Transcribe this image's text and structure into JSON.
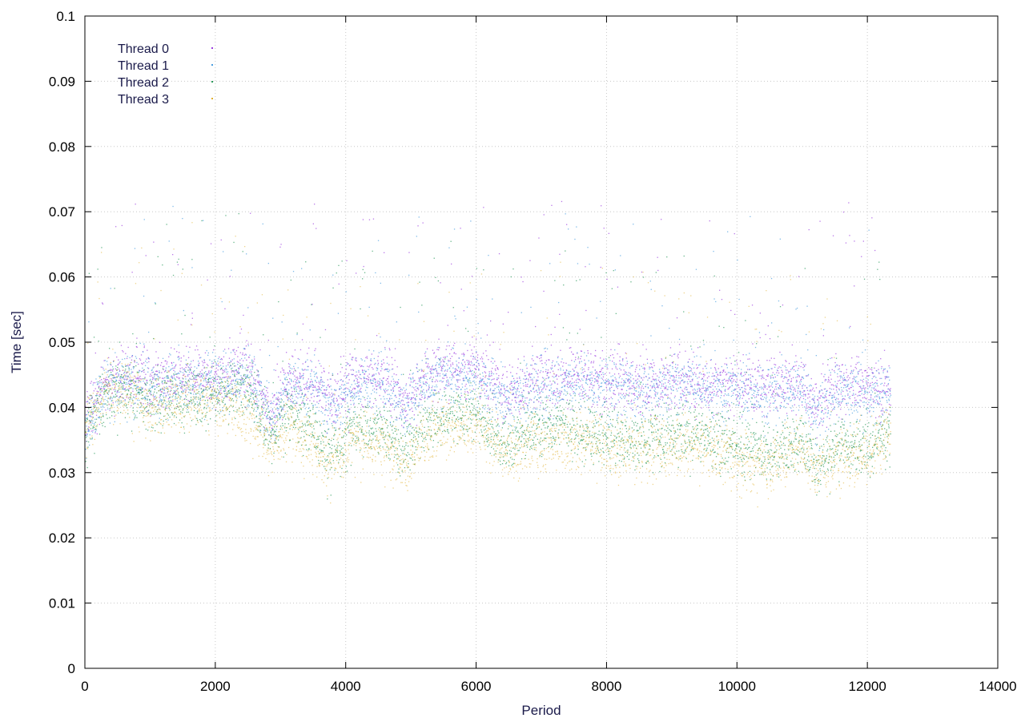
{
  "chart_data": {
    "type": "scatter",
    "title": "",
    "xlabel": "Period",
    "ylabel": "Time [sec]",
    "xlim": [
      0,
      14000
    ],
    "ylim": [
      0,
      0.1
    ],
    "x_ticks": [
      "0",
      "2000",
      "4000",
      "6000",
      "8000",
      "10000",
      "12000",
      "14000"
    ],
    "y_ticks": [
      "0",
      "0.01",
      "0.02",
      "0.03",
      "0.04",
      "0.05",
      "0.06",
      "0.07",
      "0.08",
      "0.09",
      "0.1"
    ],
    "grid": true,
    "legend_position": "top-left",
    "x_data_range": [
      0,
      12350
    ],
    "series": [
      {
        "name": "Thread 0",
        "color": "#9c3fe0",
        "marker": "dot",
        "trend": [
          [
            0,
            0.038
          ],
          [
            300,
            0.044
          ],
          [
            700,
            0.045
          ],
          [
            1000,
            0.044
          ],
          [
            1500,
            0.045
          ],
          [
            2000,
            0.045
          ],
          [
            2500,
            0.046
          ],
          [
            2850,
            0.039
          ],
          [
            3100,
            0.044
          ],
          [
            3500,
            0.044
          ],
          [
            3800,
            0.041
          ],
          [
            4100,
            0.044
          ],
          [
            4600,
            0.045
          ],
          [
            4900,
            0.04
          ],
          [
            5200,
            0.045
          ],
          [
            5600,
            0.046
          ],
          [
            6000,
            0.046
          ],
          [
            6450,
            0.042
          ],
          [
            6800,
            0.044
          ],
          [
            7200,
            0.044
          ],
          [
            7600,
            0.045
          ],
          [
            8000,
            0.044
          ],
          [
            8500,
            0.044
          ],
          [
            9000,
            0.044
          ],
          [
            9500,
            0.044
          ],
          [
            10000,
            0.044
          ],
          [
            10500,
            0.043
          ],
          [
            11000,
            0.044
          ],
          [
            11200,
            0.04
          ],
          [
            11500,
            0.044
          ],
          [
            12000,
            0.043
          ],
          [
            12350,
            0.043
          ]
        ]
      },
      {
        "name": "Thread 1",
        "color": "#4a9ee0",
        "marker": "dot",
        "trend": [
          [
            0,
            0.037
          ],
          [
            300,
            0.043
          ],
          [
            700,
            0.044
          ],
          [
            1000,
            0.043
          ],
          [
            1500,
            0.044
          ],
          [
            2000,
            0.044
          ],
          [
            2500,
            0.045
          ],
          [
            2850,
            0.038
          ],
          [
            3100,
            0.043
          ],
          [
            3500,
            0.043
          ],
          [
            3800,
            0.04
          ],
          [
            4100,
            0.043
          ],
          [
            4600,
            0.044
          ],
          [
            4900,
            0.04
          ],
          [
            5200,
            0.044
          ],
          [
            5600,
            0.045
          ],
          [
            6000,
            0.045
          ],
          [
            6450,
            0.041
          ],
          [
            6800,
            0.043
          ],
          [
            7200,
            0.043
          ],
          [
            7600,
            0.044
          ],
          [
            8000,
            0.043
          ],
          [
            8500,
            0.043
          ],
          [
            9000,
            0.043
          ],
          [
            9500,
            0.043
          ],
          [
            10000,
            0.043
          ],
          [
            10500,
            0.042
          ],
          [
            11000,
            0.043
          ],
          [
            11200,
            0.039
          ],
          [
            11500,
            0.043
          ],
          [
            12000,
            0.042
          ],
          [
            12350,
            0.042
          ]
        ]
      },
      {
        "name": "Thread 2",
        "color": "#2a9a5a",
        "marker": "dot",
        "trend": [
          [
            0,
            0.036
          ],
          [
            300,
            0.042
          ],
          [
            700,
            0.043
          ],
          [
            1000,
            0.041
          ],
          [
            1500,
            0.042
          ],
          [
            2000,
            0.042
          ],
          [
            2500,
            0.043
          ],
          [
            2850,
            0.036
          ],
          [
            3100,
            0.039
          ],
          [
            3500,
            0.038
          ],
          [
            3700,
            0.032
          ],
          [
            4100,
            0.037
          ],
          [
            4500,
            0.037
          ],
          [
            4900,
            0.033
          ],
          [
            5200,
            0.038
          ],
          [
            5600,
            0.039
          ],
          [
            6000,
            0.039
          ],
          [
            6450,
            0.034
          ],
          [
            6800,
            0.037
          ],
          [
            7200,
            0.038
          ],
          [
            7600,
            0.037
          ],
          [
            8000,
            0.036
          ],
          [
            8500,
            0.035
          ],
          [
            9000,
            0.036
          ],
          [
            9500,
            0.036
          ],
          [
            10000,
            0.034
          ],
          [
            10500,
            0.033
          ],
          [
            11000,
            0.035
          ],
          [
            11200,
            0.031
          ],
          [
            11500,
            0.034
          ],
          [
            12000,
            0.034
          ],
          [
            12350,
            0.036
          ]
        ]
      },
      {
        "name": "Thread 3",
        "color": "#e0b030",
        "marker": "dot",
        "trend": [
          [
            0,
            0.036
          ],
          [
            300,
            0.043
          ],
          [
            700,
            0.042
          ],
          [
            1000,
            0.04
          ],
          [
            1500,
            0.041
          ],
          [
            2000,
            0.041
          ],
          [
            2500,
            0.039
          ],
          [
            2850,
            0.034
          ],
          [
            3100,
            0.037
          ],
          [
            3500,
            0.035
          ],
          [
            3700,
            0.031
          ],
          [
            4100,
            0.035
          ],
          [
            4500,
            0.035
          ],
          [
            4900,
            0.031
          ],
          [
            5200,
            0.036
          ],
          [
            5600,
            0.037
          ],
          [
            6000,
            0.038
          ],
          [
            6450,
            0.033
          ],
          [
            6800,
            0.035
          ],
          [
            7200,
            0.035
          ],
          [
            7600,
            0.035
          ],
          [
            8000,
            0.034
          ],
          [
            8500,
            0.033
          ],
          [
            9000,
            0.034
          ],
          [
            9500,
            0.034
          ],
          [
            10000,
            0.032
          ],
          [
            10500,
            0.031
          ],
          [
            11000,
            0.034
          ],
          [
            11200,
            0.03
          ],
          [
            11500,
            0.032
          ],
          [
            12000,
            0.033
          ],
          [
            12350,
            0.036
          ]
        ]
      }
    ]
  }
}
